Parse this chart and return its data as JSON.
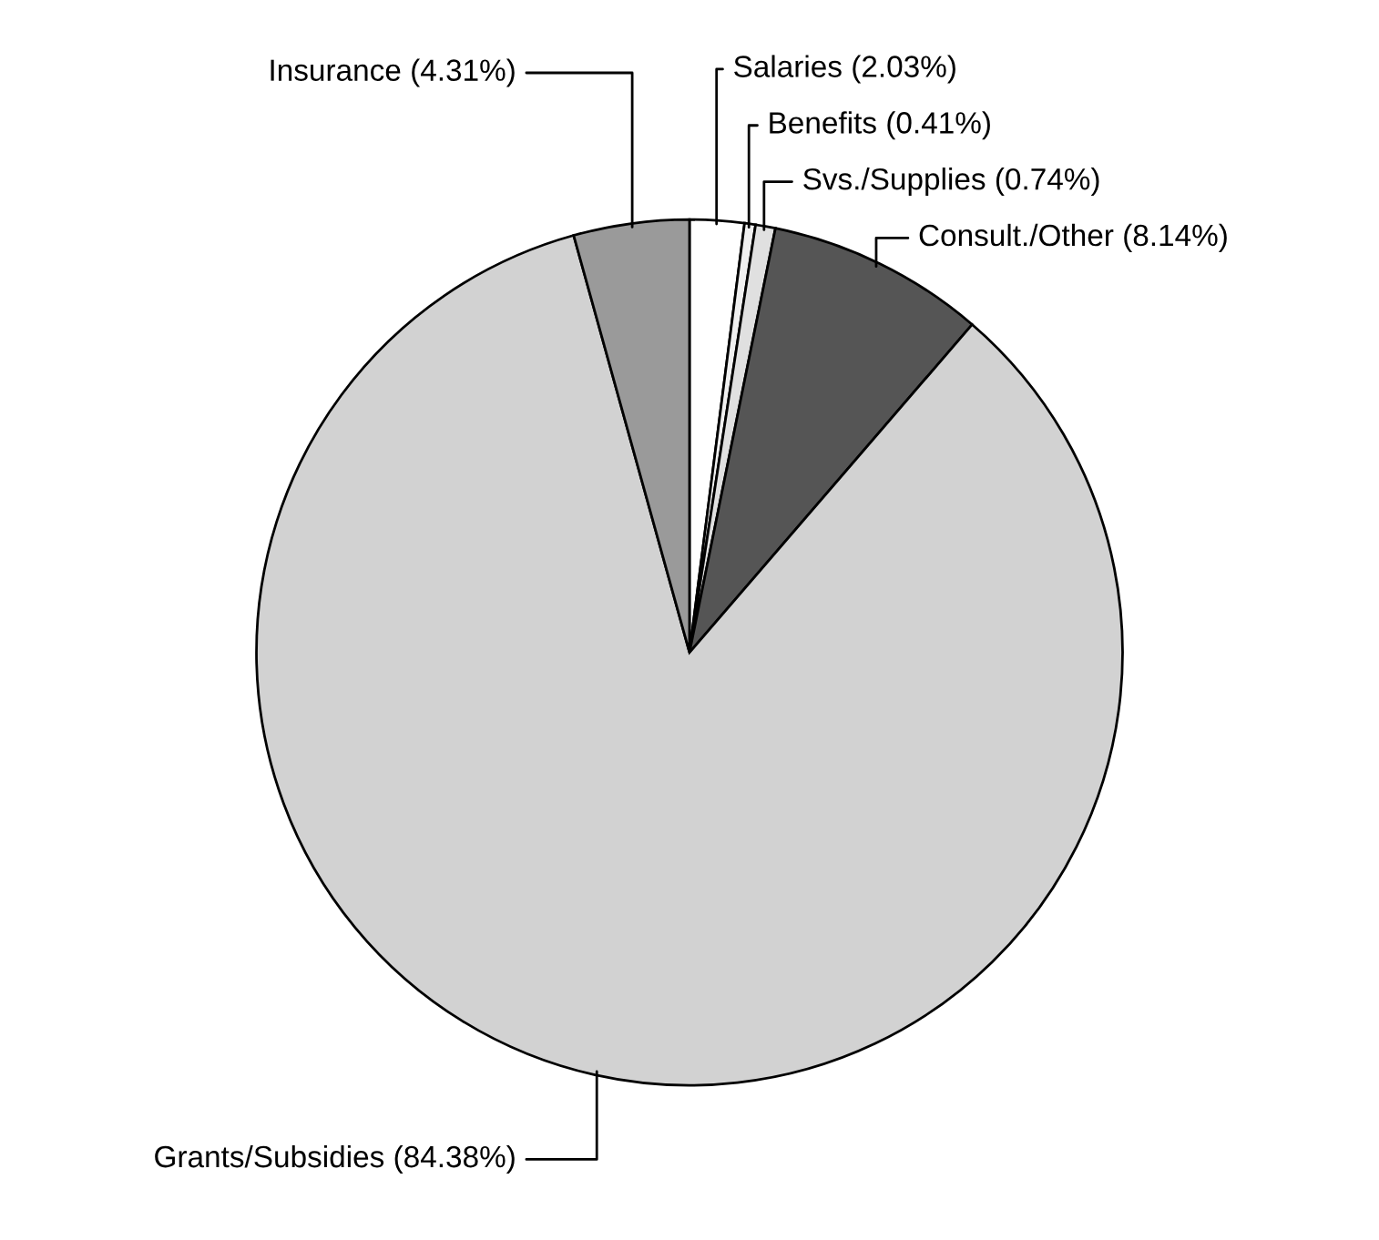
{
  "chart_data": {
    "type": "pie",
    "categories": [
      "Salaries (2.03%)",
      "Benefits (0.41%)",
      "Svs./Supplies (0.74%)",
      "Consult./Other (8.14%)",
      "Grants/Subsidies (84.38%)",
      "Insurance (4.31%)"
    ],
    "values": [
      2.03,
      0.41,
      0.74,
      8.14,
      84.38,
      4.31
    ],
    "colors": [
      "#ffffff",
      "#f0f0f0",
      "#e0e0e0",
      "#555555",
      "#d2d2d2",
      "#9a9a9a"
    ],
    "legend": false
  }
}
